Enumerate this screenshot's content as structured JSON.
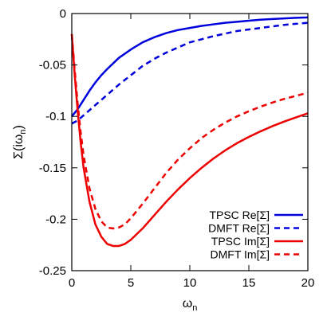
{
  "chart_data": {
    "type": "line",
    "title": "",
    "xlabel": "ω",
    "xlabel_sub": "n",
    "ylabel_prefix": "Σ(iω",
    "ylabel_sub": "n",
    "ylabel_suffix": ")",
    "xlim": [
      0,
      20
    ],
    "ylim": [
      -0.25,
      0
    ],
    "xticks": [
      0,
      5,
      10,
      15,
      20
    ],
    "yticks": [
      0,
      -0.05,
      -0.1,
      -0.15,
      -0.2,
      -0.25
    ],
    "xtick_labels": [
      "0",
      "5",
      "10",
      "15",
      "20"
    ],
    "ytick_labels": [
      "0",
      "-0.05",
      "-0.1",
      "-0.15",
      "-0.2",
      "-0.25"
    ],
    "grid": false,
    "legend_position": "bottom-right",
    "series": [
      {
        "name": "TPSC Re[Σ]",
        "color": "#0000dd",
        "dash": "solid",
        "x": [
          0,
          0.5,
          1,
          1.5,
          2,
          2.5,
          3,
          4,
          5,
          6,
          7,
          8,
          9,
          10,
          11,
          12,
          13,
          14,
          15,
          16,
          17,
          18,
          19,
          20
        ],
        "y": [
          -0.1,
          -0.093,
          -0.084,
          -0.075,
          -0.067,
          -0.06,
          -0.054,
          -0.043,
          -0.035,
          -0.028,
          -0.023,
          -0.019,
          -0.016,
          -0.014,
          -0.012,
          -0.0105,
          -0.009,
          -0.008,
          -0.007,
          -0.006,
          -0.0053,
          -0.0047,
          -0.0042,
          -0.0038
        ]
      },
      {
        "name": "DMFT Re[Σ]",
        "color": "#0000dd",
        "dash": "dashed",
        "x": [
          0,
          0.5,
          1,
          1.5,
          2,
          2.5,
          3,
          4,
          5,
          6,
          7,
          8,
          9,
          10,
          11,
          12,
          13,
          14,
          15,
          16,
          17,
          18,
          19,
          20
        ],
        "y": [
          -0.107,
          -0.104,
          -0.099,
          -0.094,
          -0.089,
          -0.084,
          -0.079,
          -0.069,
          -0.06,
          -0.051,
          -0.044,
          -0.038,
          -0.033,
          -0.028,
          -0.025,
          -0.022,
          -0.0195,
          -0.017,
          -0.0155,
          -0.014,
          -0.0125,
          -0.011,
          -0.01,
          -0.009
        ]
      },
      {
        "name": "TPSC Im[Σ]",
        "color": "#ee0000",
        "dash": "solid",
        "x": [
          0,
          0.25,
          0.5,
          0.75,
          1,
          1.5,
          2,
          2.5,
          3,
          3.5,
          4,
          4.5,
          5,
          6,
          7,
          8,
          9,
          10,
          11,
          12,
          13,
          14,
          15,
          16,
          17,
          18,
          19,
          20
        ],
        "y": [
          -0.02,
          -0.06,
          -0.095,
          -0.125,
          -0.15,
          -0.183,
          -0.205,
          -0.217,
          -0.224,
          -0.226,
          -0.226,
          -0.224,
          -0.22,
          -0.209,
          -0.196,
          -0.183,
          -0.171,
          -0.16,
          -0.15,
          -0.141,
          -0.133,
          -0.126,
          -0.12,
          -0.1145,
          -0.1095,
          -0.105,
          -0.101,
          -0.097
        ]
      },
      {
        "name": "DMFT Im[Σ]",
        "color": "#ee0000",
        "dash": "dashed",
        "x": [
          0,
          0.25,
          0.5,
          0.75,
          1,
          1.5,
          2,
          2.5,
          3,
          3.5,
          4,
          4.5,
          5,
          6,
          7,
          8,
          9,
          10,
          11,
          12,
          13,
          14,
          15,
          16,
          17,
          18,
          19,
          20
        ],
        "y": [
          -0.02,
          -0.055,
          -0.088,
          -0.115,
          -0.138,
          -0.17,
          -0.19,
          -0.202,
          -0.208,
          -0.209,
          -0.208,
          -0.205,
          -0.199,
          -0.185,
          -0.17,
          -0.155,
          -0.142,
          -0.131,
          -0.121,
          -0.113,
          -0.106,
          -0.1,
          -0.095,
          -0.0905,
          -0.0865,
          -0.083,
          -0.08,
          -0.077
        ]
      }
    ]
  }
}
